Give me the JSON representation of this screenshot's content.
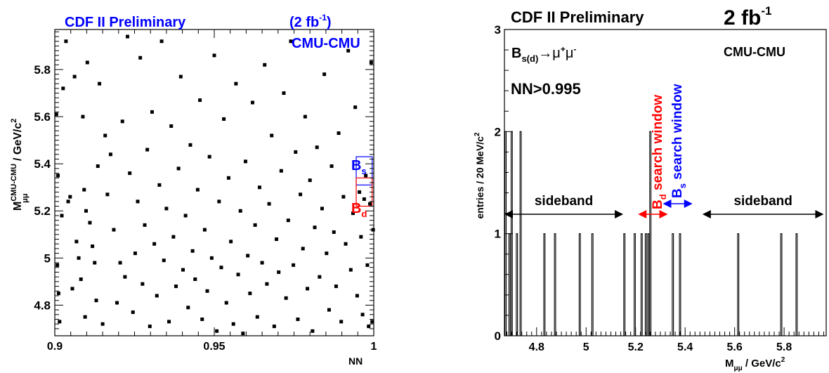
{
  "chart_data": [
    {
      "type": "scatter",
      "title": "CDF II Preliminary",
      "luminosity": "(2 fb",
      "luminosity_exp": "-1",
      "luminosity_close": ")",
      "channel": "CMU-CMU",
      "xlabel": "NN",
      "ylabel_main": "M",
      "ylabel_sup": "CMU-CMU",
      "ylabel_sub": "μμ",
      "ylabel_unit": " / GeV/c",
      "ylabel_unit_sup": "2",
      "xlim": [
        0.9,
        1.0
      ],
      "ylim": [
        4.67,
        5.97
      ],
      "x_ticks": [
        0.9,
        0.95,
        1.0
      ],
      "x_tick_labels": [
        "0.9",
        "0.95",
        "1"
      ],
      "y_ticks": [
        4.8,
        5.0,
        5.2,
        5.4,
        5.6,
        5.8
      ],
      "y_tick_labels": [
        "4.8",
        "5",
        "5.2",
        "5.4",
        "5.6",
        "5.8"
      ],
      "boxes": [
        {
          "label": "B",
          "label_sub": "s",
          "color": "#0000ff",
          "x": [
            0.9945,
            0.9995
          ],
          "y": [
            5.31,
            5.43
          ]
        },
        {
          "label": "B",
          "label_sub": "d",
          "color": "#ff0000",
          "x": [
            0.9945,
            0.9995
          ],
          "y": [
            5.22,
            5.34
          ]
        }
      ],
      "points": [
        [
          0.9005,
          5.61
        ],
        [
          0.9008,
          4.97
        ],
        [
          0.901,
          5.35
        ],
        [
          0.9012,
          4.85
        ],
        [
          0.9015,
          4.73
        ],
        [
          0.9022,
          5.18
        ],
        [
          0.9026,
          5.72
        ],
        [
          0.9035,
          5.92
        ],
        [
          0.9042,
          5.24
        ],
        [
          0.9048,
          5.26
        ],
        [
          0.9055,
          4.87
        ],
        [
          0.9062,
          5.77
        ],
        [
          0.9068,
          5.07
        ],
        [
          0.9075,
          5.0
        ],
        [
          0.9082,
          4.91
        ],
        [
          0.9088,
          5.6
        ],
        [
          0.9092,
          5.29
        ],
        [
          0.9095,
          4.75
        ],
        [
          0.9098,
          5.2
        ],
        [
          0.9102,
          5.83
        ],
        [
          0.911,
          5.15
        ],
        [
          0.9118,
          5.05
        ],
        [
          0.9125,
          4.98
        ],
        [
          0.913,
          4.82
        ],
        [
          0.9135,
          5.39
        ],
        [
          0.914,
          5.74
        ],
        [
          0.915,
          4.72
        ],
        [
          0.9158,
          5.52
        ],
        [
          0.9165,
          5.27
        ],
        [
          0.9175,
          5.44
        ],
        [
          0.9185,
          5.12
        ],
        [
          0.9195,
          4.81
        ],
        [
          0.9205,
          4.98
        ],
        [
          0.9212,
          5.58
        ],
        [
          0.922,
          4.92
        ],
        [
          0.9228,
          5.94
        ],
        [
          0.9235,
          5.36
        ],
        [
          0.9245,
          4.77
        ],
        [
          0.9252,
          5.02
        ],
        [
          0.926,
          5.24
        ],
        [
          0.9268,
          5.85
        ],
        [
          0.9275,
          4.89
        ],
        [
          0.9282,
          5.14
        ],
        [
          0.929,
          5.46
        ],
        [
          0.9298,
          4.71
        ],
        [
          0.9305,
          5.62
        ],
        [
          0.9312,
          5.06
        ],
        [
          0.932,
          4.84
        ],
        [
          0.9328,
          5.31
        ],
        [
          0.9335,
          5.92
        ],
        [
          0.9342,
          4.99
        ],
        [
          0.935,
          5.21
        ],
        [
          0.9358,
          4.73
        ],
        [
          0.9365,
          5.56
        ],
        [
          0.9372,
          5.09
        ],
        [
          0.938,
          4.88
        ],
        [
          0.9388,
          5.38
        ],
        [
          0.9395,
          5.77
        ],
        [
          0.9402,
          4.95
        ],
        [
          0.941,
          5.18
        ],
        [
          0.9418,
          4.79
        ],
        [
          0.9425,
          5.48
        ],
        [
          0.9432,
          5.03
        ],
        [
          0.944,
          4.91
        ],
        [
          0.9448,
          5.29
        ],
        [
          0.9455,
          5.67
        ],
        [
          0.9462,
          4.74
        ],
        [
          0.947,
          5.12
        ],
        [
          0.9478,
          4.86
        ],
        [
          0.9485,
          5.43
        ],
        [
          0.9492,
          5.0
        ],
        [
          0.95,
          5.86
        ],
        [
          0.9508,
          4.69
        ],
        [
          0.9515,
          5.24
        ],
        [
          0.9522,
          4.96
        ],
        [
          0.953,
          5.59
        ],
        [
          0.9538,
          4.81
        ],
        [
          0.9545,
          5.34
        ],
        [
          0.9552,
          5.07
        ],
        [
          0.956,
          4.72
        ],
        [
          0.9568,
          5.74
        ],
        [
          0.9575,
          4.93
        ],
        [
          0.9582,
          5.2
        ],
        [
          0.959,
          4.68
        ],
        [
          0.9598,
          5.41
        ],
        [
          0.9605,
          5.01
        ],
        [
          0.9612,
          4.85
        ],
        [
          0.962,
          5.66
        ],
        [
          0.9628,
          5.14
        ],
        [
          0.9635,
          4.75
        ],
        [
          0.9642,
          5.3
        ],
        [
          0.965,
          4.98
        ],
        [
          0.9658,
          5.82
        ],
        [
          0.9665,
          4.89
        ],
        [
          0.9672,
          5.23
        ],
        [
          0.968,
          5.52
        ],
        [
          0.9688,
          4.71
        ],
        [
          0.9695,
          5.08
        ],
        [
          0.9702,
          4.94
        ],
        [
          0.971,
          5.37
        ],
        [
          0.9718,
          5.7
        ],
        [
          0.9725,
          4.83
        ],
        [
          0.9732,
          5.16
        ],
        [
          0.974,
          5.92
        ],
        [
          0.9748,
          4.97
        ],
        [
          0.9755,
          5.45
        ],
        [
          0.9762,
          4.74
        ],
        [
          0.977,
          5.27
        ],
        [
          0.9778,
          5.04
        ],
        [
          0.9785,
          5.6
        ],
        [
          0.9792,
          4.87
        ],
        [
          0.98,
          5.33
        ],
        [
          0.9808,
          4.69
        ],
        [
          0.9815,
          5.13
        ],
        [
          0.9822,
          5.47
        ],
        [
          0.983,
          4.92
        ],
        [
          0.9838,
          5.21
        ],
        [
          0.9845,
          5.78
        ],
        [
          0.9852,
          5.02
        ],
        [
          0.986,
          4.78
        ],
        [
          0.9868,
          5.39
        ],
        [
          0.9875,
          5.11
        ],
        [
          0.9882,
          4.88
        ],
        [
          0.989,
          5.53
        ],
        [
          0.9898,
          4.73
        ],
        [
          0.9905,
          5.26
        ],
        [
          0.9912,
          5.06
        ],
        [
          0.992,
          5.88
        ],
        [
          0.9928,
          4.95
        ],
        [
          0.9935,
          5.19
        ],
        [
          0.9942,
          5.64
        ],
        [
          0.9948,
          4.84
        ],
        [
          0.9955,
          5.28
        ],
        [
          0.996,
          5.09
        ],
        [
          0.9965,
          4.76
        ],
        [
          0.997,
          5.25
        ],
        [
          0.9975,
          5.35
        ],
        [
          0.998,
          4.97
        ],
        [
          0.9984,
          4.71
        ],
        [
          0.9988,
          5.23
        ],
        [
          0.9992,
          5.83
        ],
        [
          0.9995,
          4.73
        ],
        [
          0.9998,
          5.12
        ]
      ]
    },
    {
      "type": "histogram",
      "title": "CDF II Preliminary",
      "luminosity": "2 fb",
      "luminosity_exp": "-1",
      "channel": "CMU-CMU",
      "decay_prefix": "B",
      "decay_sub": "s(d)",
      "decay_arrow": "→",
      "decay_mu1": "μ",
      "decay_plus": "+",
      "decay_mu2": "μ",
      "decay_minus": "-",
      "cut": "NN>0.995",
      "xlabel": "M",
      "xlabel_sub": "μμ",
      "xlabel_unit": " / GeV/c",
      "xlabel_unit_sup": "2",
      "ylabel": "entries / 20 MeV/c",
      "ylabel_sup": "2",
      "xlim": [
        4.67,
        5.97
      ],
      "ylim": [
        0,
        3
      ],
      "x_ticks": [
        4.8,
        5.0,
        5.2,
        5.4,
        5.6,
        5.8
      ],
      "x_tick_labels": [
        "4.8",
        "5",
        "5.2",
        "5.4",
        "5.6",
        "5.8"
      ],
      "y_ticks": [
        0,
        1,
        2,
        3
      ],
      "y_tick_labels": [
        "0",
        "1",
        "2",
        "3"
      ],
      "bin_width": 0.005,
      "bins": [
        [
          4.672,
          2
        ],
        [
          4.688,
          1
        ],
        [
          4.697,
          2
        ],
        [
          4.718,
          1
        ],
        [
          4.733,
          2
        ],
        [
          4.829,
          1
        ],
        [
          4.872,
          1
        ],
        [
          4.972,
          1
        ],
        [
          5.023,
          1
        ],
        [
          5.152,
          1
        ],
        [
          5.194,
          1
        ],
        [
          5.222,
          1
        ],
        [
          5.239,
          1
        ],
        [
          5.249,
          1
        ],
        [
          5.257,
          2
        ],
        [
          5.348,
          1
        ],
        [
          5.377,
          1
        ],
        [
          5.612,
          1
        ],
        [
          5.786,
          1
        ],
        [
          5.848,
          1
        ]
      ],
      "annotations": {
        "sideband_left": {
          "text": "sideband",
          "x": [
            4.67,
            5.15
          ]
        },
        "sideband_right": {
          "text": "sideband",
          "x": [
            5.47,
            5.96
          ]
        },
        "bd_window": {
          "text_prefix": "B",
          "text_sub": "d",
          "text_suffix": " search window",
          "color": "#ff0000",
          "x": [
            5.21,
            5.33
          ]
        },
        "bs_window": {
          "text_prefix": "B",
          "text_sub": "s",
          "text_suffix": " search window",
          "color": "#0000ff",
          "x": [
            5.31,
            5.43
          ]
        }
      }
    }
  ]
}
